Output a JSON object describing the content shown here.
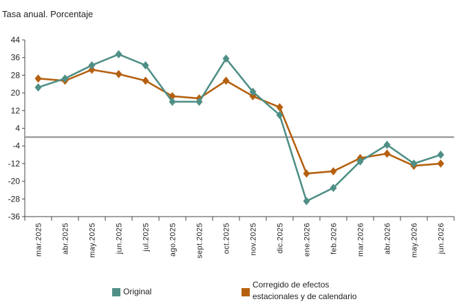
{
  "chart_data": {
    "type": "line",
    "subtitle": "Tasa anual. Porcentaje",
    "categories": [
      "mar.2025",
      "abr.2025",
      "may.2025",
      "jun.2025",
      "jul.2025",
      "ago.2025",
      "sept.2025",
      "oct.2025",
      "nov.2025",
      "dic.2025",
      "ene.2026",
      "feb.2026",
      "mar.2026",
      "abr.2026",
      "may.2026",
      "jun.2026"
    ],
    "yticks": [
      44,
      36,
      28,
      20,
      12,
      4,
      -4,
      -12,
      -20,
      -28,
      -36
    ],
    "ylim": [
      -36,
      44
    ],
    "reference_line": 0,
    "grid": false,
    "legend_position": "bottom",
    "series": [
      {
        "name": "Original",
        "color": "#4f8f86",
        "values": [
          22.5,
          26.5,
          32.5,
          37.5,
          32.5,
          16,
          16,
          35.5,
          20.5,
          10,
          -29,
          -23,
          -11,
          -3.5,
          -12,
          -8
        ]
      },
      {
        "name": "Corregido de efectos estacionales y de calendario",
        "name_line1": "Corregido de efectos",
        "name_line2": "estacionales y de calendario",
        "color": "#b5600f",
        "values": [
          26.5,
          25.5,
          30.5,
          28.5,
          25.5,
          18.5,
          17.5,
          25.5,
          18.5,
          13.5,
          -16.5,
          -15.5,
          -9.5,
          -7.5,
          -13,
          -12
        ]
      }
    ]
  }
}
